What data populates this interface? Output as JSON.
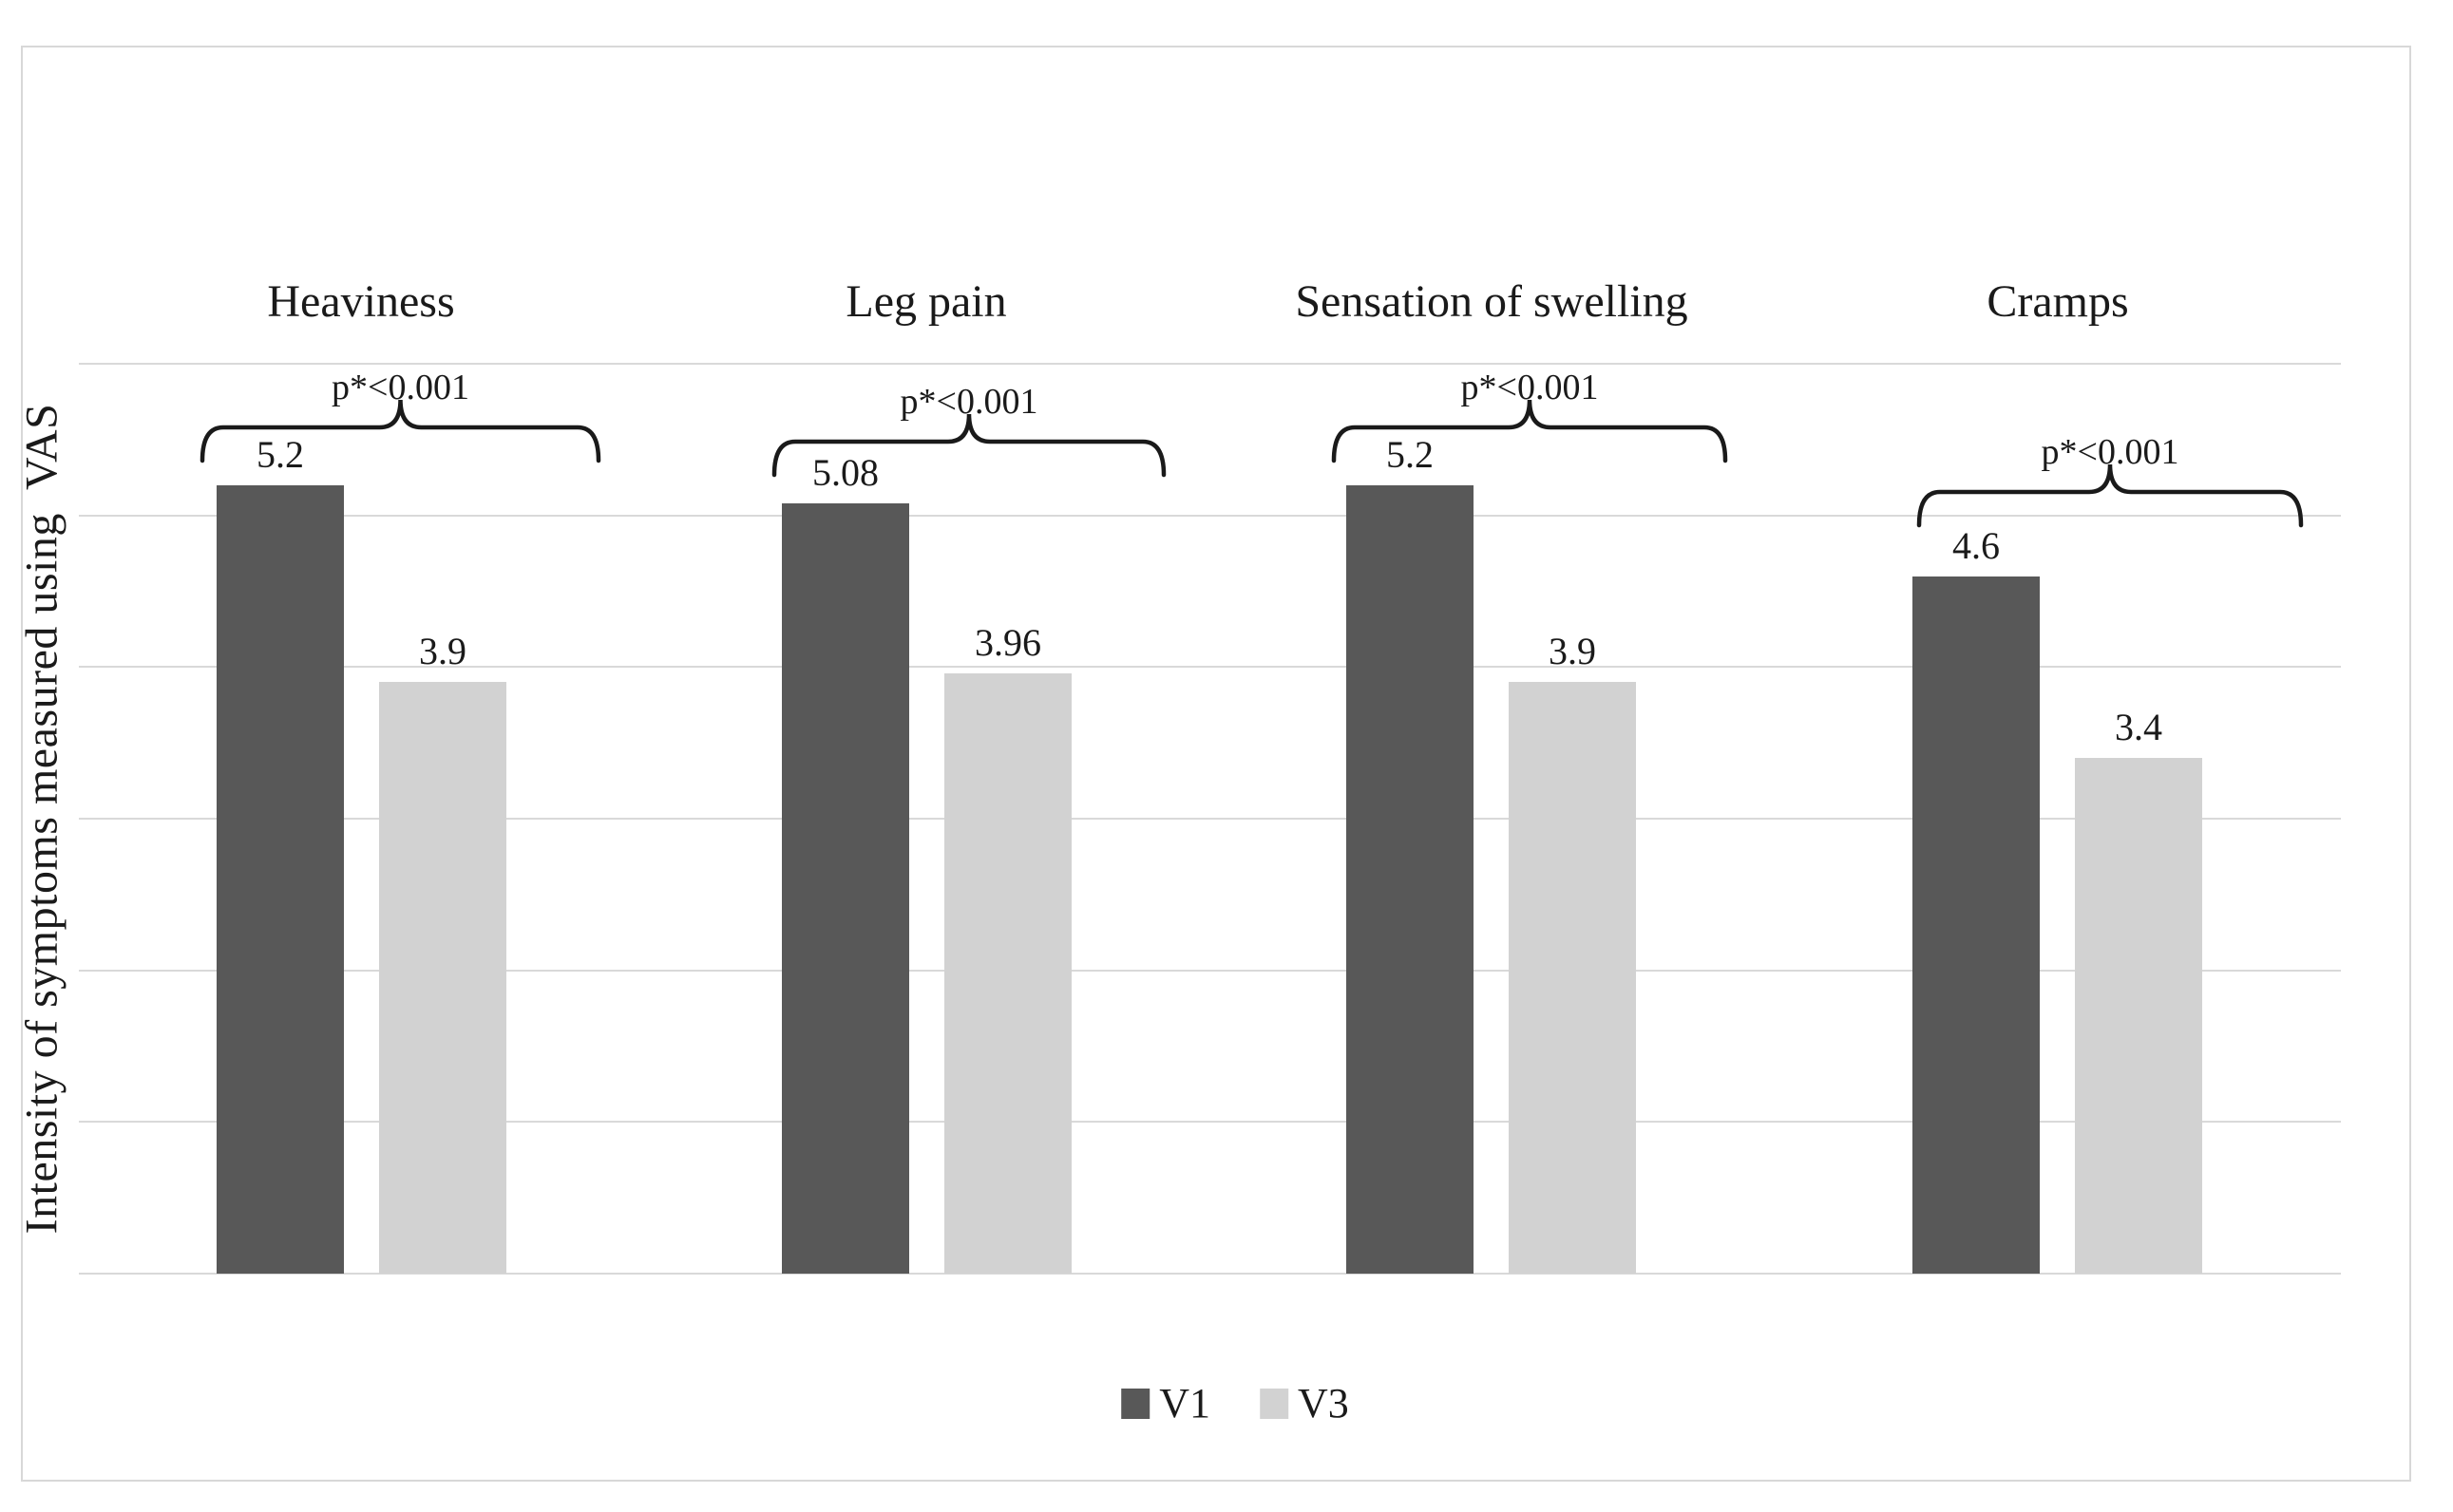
{
  "figure": {
    "background": "#ffffff",
    "border_color": "#d8d8d8",
    "gridline_color": "#d9d9d9",
    "text_color": "#1a1a1a"
  },
  "chart_data": {
    "type": "bar",
    "title": "",
    "ylabel": "Intensity of symptoms measured using  VAS",
    "xlabel": "",
    "categories": [
      "Heaviness",
      "Leg pain",
      "Sensation of swelling",
      "Cramps"
    ],
    "series": [
      {
        "name": "V1",
        "color": "#585858",
        "values": [
          5.2,
          5.08,
          5.2,
          4.6
        ]
      },
      {
        "name": "V3",
        "color": "#d2d2d2",
        "values": [
          3.9,
          3.96,
          3.9,
          3.4
        ]
      }
    ],
    "value_labels": [
      [
        "5.2",
        "3.9"
      ],
      [
        "5.08",
        "3.96"
      ],
      [
        "5.2",
        "3.9"
      ],
      [
        "4.6",
        "3.4"
      ]
    ],
    "annotations": [
      {
        "category": "Heaviness",
        "text": "p*<0.001"
      },
      {
        "category": "Leg pain",
        "text": "p*<0.001"
      },
      {
        "category": "Sensation of swelling",
        "text": "p*<0.001"
      },
      {
        "category": "Cramps",
        "text": "p*<0.001"
      }
    ],
    "ylim": [
      0,
      6
    ],
    "gridlines": "horizontal, every 1 unit, no tick labels",
    "legend_position": "bottom-center"
  },
  "legend": {
    "items": [
      {
        "label": "V1",
        "color": "#585858"
      },
      {
        "label": "V3",
        "color": "#d2d2d2"
      }
    ]
  }
}
